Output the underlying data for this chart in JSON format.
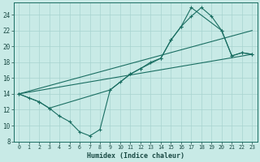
{
  "xlabel": "Humidex (Indice chaleur)",
  "background_color": "#c8eae6",
  "grid_color": "#a8d4d0",
  "line_color": "#1a6e62",
  "xlim": [
    -0.5,
    23.5
  ],
  "ylim": [
    8,
    25.5
  ],
  "yticks": [
    8,
    10,
    12,
    14,
    16,
    18,
    20,
    22,
    24
  ],
  "xticks": [
    0,
    1,
    2,
    3,
    4,
    5,
    6,
    7,
    8,
    9,
    10,
    11,
    12,
    13,
    14,
    15,
    16,
    17,
    18,
    19,
    20,
    21,
    22,
    23
  ],
  "line1_x": [
    0,
    1,
    2,
    3,
    4,
    5,
    6,
    7,
    8,
    9,
    10,
    11,
    12,
    13,
    14,
    15,
    16,
    17,
    18,
    19,
    20,
    21,
    22,
    23
  ],
  "line1_y": [
    14.0,
    13.5,
    13.0,
    12.2,
    11.2,
    10.5,
    9.2,
    8.7,
    9.5,
    14.5,
    15.5,
    16.5,
    17.2,
    18.0,
    18.5,
    20.8,
    22.5,
    23.8,
    24.9,
    23.8,
    22.0,
    18.8,
    19.2,
    19.0
  ],
  "line2_x": [
    0,
    2,
    3,
    9,
    11,
    12,
    14,
    15,
    16,
    17,
    20,
    21,
    22,
    23
  ],
  "line2_y": [
    14.0,
    13.0,
    12.2,
    14.5,
    16.5,
    17.2,
    18.5,
    20.8,
    22.5,
    24.9,
    22.0,
    18.8,
    19.2,
    19.0
  ],
  "line3_x": [
    0,
    23
  ],
  "line3_y": [
    14.0,
    22.0
  ],
  "line4_x": [
    0,
    23
  ],
  "line4_y": [
    14.0,
    19.0
  ]
}
